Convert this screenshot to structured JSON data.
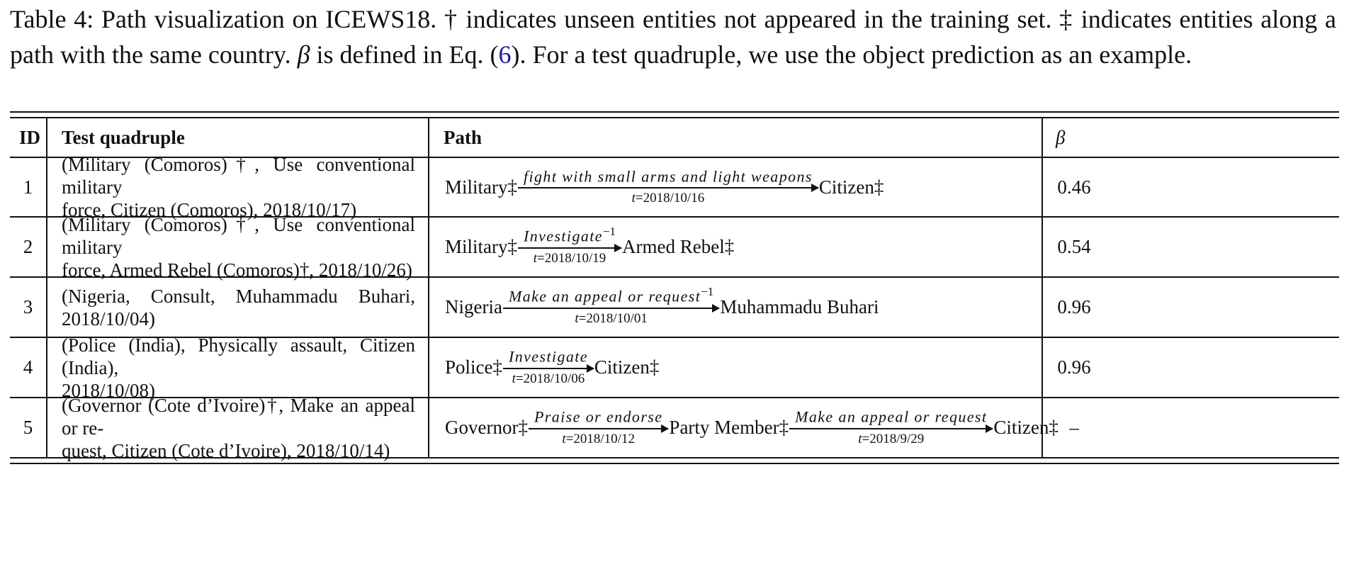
{
  "caption": {
    "lead": "Table 4: Path visualization on ICEWS18. † indicates unseen entities not appeared in the training set. ‡ indicates entities along a path with the same country. ",
    "beta_symbol": "β",
    "mid": " is defined in Eq. (",
    "eq_ref": "6",
    "tail": "). For a test quadruple, we use the object prediction as an example."
  },
  "table": {
    "headers": {
      "id": "ID",
      "quad": "Test quadruple",
      "path": "Path",
      "beta": "β"
    },
    "rows": [
      {
        "id": "1",
        "quad_line1": "(Military (Comoros)†, Use conventional military",
        "quad_line2": "force, Citizen (Comoros), 2018/10/17)",
        "path": {
          "e1": "Military‡",
          "r1": "fight with small arms and light weapons",
          "r1_sup": "",
          "t1": "=2018/10/16",
          "e2": "Citizen‡"
        },
        "beta": "0.46"
      },
      {
        "id": "2",
        "quad_line1": "(Military (Comoros)†, Use conventional military",
        "quad_line2": "force, Armed Rebel (Comoros)†, 2018/10/26)",
        "path": {
          "e1": "Military‡",
          "r1": "Investigate",
          "r1_sup": "−1",
          "t1": "=2018/10/19",
          "e2": "Armed Rebel‡"
        },
        "beta": "0.54"
      },
      {
        "id": "3",
        "quad_line1": "(Nigeria, Consult, Muhammadu Buhari, 2018/10/04)",
        "quad_line2": "",
        "path": {
          "e1": "Nigeria",
          "r1": "Make an appeal or request",
          "r1_sup": "−1",
          "t1": "=2018/10/01",
          "e2": "Muhammadu Buhari"
        },
        "beta": "0.96"
      },
      {
        "id": "4",
        "quad_line1": "(Police (India), Physically assault, Citizen (India),",
        "quad_line2": "2018/10/08)",
        "path": {
          "e1": "Police‡",
          "r1": "Investigate",
          "r1_sup": "",
          "t1": "=2018/10/06",
          "e2": "Citizen‡"
        },
        "beta": "0.96"
      },
      {
        "id": "5",
        "quad_line1": "(Governor (Cote d’Ivoire)†, Make an appeal or re-",
        "quad_line2": "quest, Citizen (Cote d’Ivoire), 2018/10/14)",
        "path": {
          "e1": "Governor‡",
          "r1": "Praise or endorse",
          "r1_sup": "",
          "t1": "=2018/10/12",
          "e2": "Party Member‡",
          "r2": "Make an appeal or request",
          "r2_sup": "",
          "t2": "=2018/9/29",
          "e3": "Citizen‡"
        },
        "beta": "–"
      }
    ],
    "time_var": "t"
  }
}
